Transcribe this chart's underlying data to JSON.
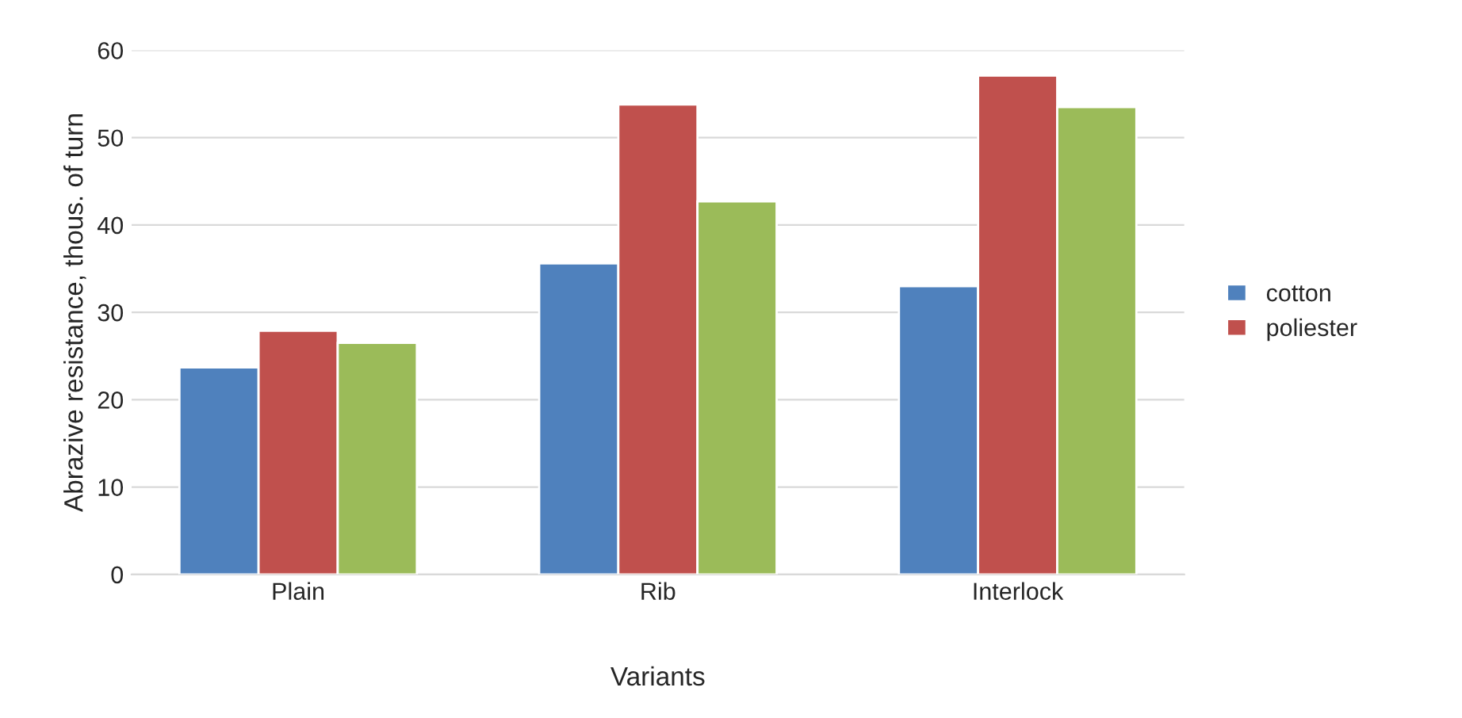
{
  "chart_data": {
    "type": "bar",
    "xlabel": "Variants",
    "ylabel": "Abrazive resistance, thous. of turn",
    "categories": [
      "Plain",
      "Rib",
      "Interlock"
    ],
    "series": [
      {
        "name": "cotton",
        "color": "#4f81bd",
        "values": [
          23.7,
          35.6,
          33.0
        ]
      },
      {
        "name": "poliester",
        "color": "#c0504d",
        "values": [
          27.9,
          53.8,
          57.1
        ]
      },
      {
        "color": "#9bbb59",
        "values": [
          26.5,
          42.7,
          53.5
        ]
      }
    ],
    "ylim": [
      0,
      60
    ],
    "yticks": [
      0,
      10,
      20,
      30,
      40,
      50,
      60
    ],
    "grid": "y",
    "legend": "right"
  }
}
